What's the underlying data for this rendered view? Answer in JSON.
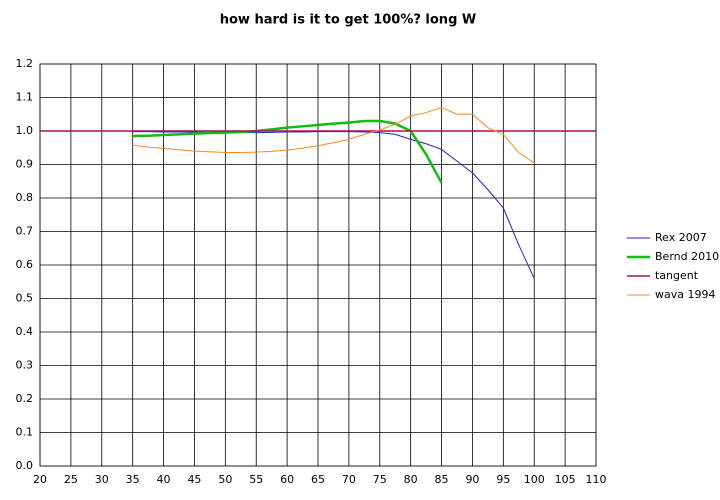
{
  "chart_data": {
    "type": "line",
    "title": "how hard is it to get 100%? long W",
    "x": [
      20,
      22.5,
      25,
      27.5,
      30,
      32.5,
      35,
      37.5,
      40,
      42.5,
      45,
      47.5,
      50,
      52.5,
      55,
      57.5,
      60,
      62.5,
      65,
      67.5,
      70,
      72.5,
      75,
      77.5,
      80,
      82.5,
      85,
      87.5,
      90,
      92.5,
      95,
      97.5,
      100,
      102.5,
      105,
      107.5,
      110
    ],
    "series": [
      {
        "name": "Rex 2007",
        "color": "#2222cc",
        "width": 1,
        "values": [
          null,
          null,
          null,
          null,
          null,
          null,
          0.998,
          0.998,
          0.997,
          0.997,
          0.997,
          0.996,
          0.996,
          0.995,
          0.995,
          0.996,
          0.997,
          0.997,
          0.998,
          0.998,
          0.998,
          0.997,
          0.995,
          0.99,
          0.975,
          0.962,
          0.945,
          0.91,
          0.875,
          0.825,
          0.77,
          0.66,
          0.56,
          null,
          null,
          null,
          null
        ]
      },
      {
        "name": "Bernd 2010",
        "color": "#11bb11",
        "width": 2.5,
        "values": [
          null,
          null,
          null,
          null,
          null,
          null,
          0.985,
          0.986,
          0.988,
          0.99,
          0.992,
          0.994,
          0.995,
          0.997,
          1.0,
          1.005,
          1.01,
          1.014,
          1.018,
          1.022,
          1.025,
          1.03,
          1.03,
          1.022,
          1.0,
          0.93,
          0.845,
          null,
          null,
          null,
          null,
          null,
          null,
          null,
          null,
          null,
          null
        ]
      },
      {
        "name": "tangent",
        "color": "#aa1155",
        "width": 1.5,
        "values": [
          1,
          1,
          1,
          1,
          1,
          1,
          1,
          1,
          1,
          1,
          1,
          1,
          1,
          1,
          1,
          1,
          1,
          1,
          1,
          1,
          1,
          1,
          1,
          1,
          1,
          1,
          1,
          1,
          1,
          1,
          1,
          1,
          1,
          1,
          1,
          1,
          1
        ]
      },
      {
        "name": "wava 1994",
        "color": "#ff8822",
        "width": 1,
        "values": [
          null,
          null,
          null,
          null,
          null,
          null,
          0.958,
          0.952,
          0.948,
          0.944,
          0.94,
          0.938,
          0.936,
          0.936,
          0.937,
          0.939,
          0.943,
          0.949,
          0.956,
          0.965,
          0.975,
          0.99,
          1.003,
          1.02,
          1.045,
          1.055,
          1.07,
          1.05,
          1.05,
          1.01,
          0.99,
          0.935,
          0.905,
          null,
          null,
          null,
          null
        ]
      }
    ],
    "xlim": [
      20,
      110
    ],
    "xticks": [
      20,
      25,
      30,
      35,
      40,
      45,
      50,
      55,
      60,
      65,
      70,
      75,
      80,
      85,
      90,
      95,
      100,
      105,
      110
    ],
    "ylim": [
      0,
      1.2
    ],
    "yticks": [
      {
        "value": 0,
        "label": "0.0"
      },
      0.1,
      0.2,
      0.3,
      0.4,
      0.5,
      0.6,
      0.7,
      0.8,
      0.9,
      {
        "value": 1,
        "label": "1.0"
      },
      1.1,
      1.2
    ],
    "grid": true,
    "legend": "right"
  }
}
